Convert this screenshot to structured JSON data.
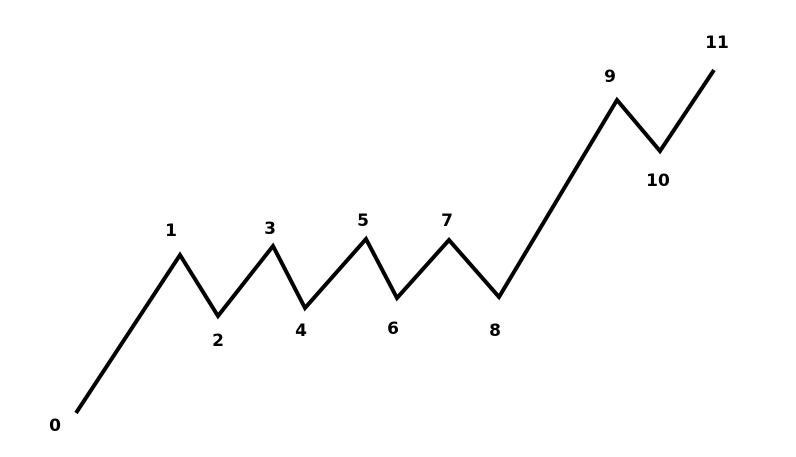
{
  "diagram": {
    "points": [
      {
        "label": "0"
      },
      {
        "label": "1"
      },
      {
        "label": "2"
      },
      {
        "label": "3"
      },
      {
        "label": "4"
      },
      {
        "label": "5"
      },
      {
        "label": "6"
      },
      {
        "label": "7"
      },
      {
        "label": "8"
      },
      {
        "label": "9"
      },
      {
        "label": "10"
      },
      {
        "label": "11"
      }
    ],
    "line_color": "#000000",
    "label_color": "#000000",
    "background": "#ffffff"
  }
}
